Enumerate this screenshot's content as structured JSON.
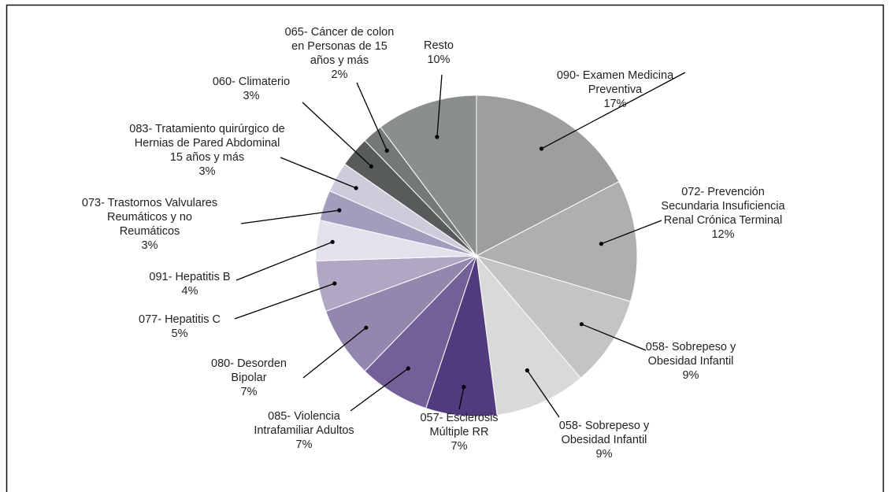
{
  "chart_data": {
    "type": "pie",
    "start": "top, clockwise",
    "slices": [
      {
        "lines": [
          "090- Examen Medicina",
          "Preventiva"
        ],
        "pct_label": "17%",
        "value": 17,
        "color": "#9d9e9f"
      },
      {
        "lines": [
          "072- Prevención",
          "Secundaria Insuficiencia",
          "Renal Crónica Terminal"
        ],
        "pct_label": "12%",
        "value": 12,
        "color": "#aeafb0"
      },
      {
        "lines": [
          "058- Sobrepeso y",
          "Obesidad Infantil"
        ],
        "pct_label": "9%",
        "value": 9,
        "color": "#c3c4c5"
      },
      {
        "lines": [
          "058- Sobrepeso y",
          "Obesidad Infantil"
        ],
        "pct_label": "9%",
        "value": 9,
        "color": "#d8d9d9"
      },
      {
        "lines": [
          "057- Esclerosis",
          "Múltiple RR"
        ],
        "pct_label": "7%",
        "value": 7,
        "color": "#523a7e"
      },
      {
        "lines": [
          "085- Violencia",
          "Intrafamiliar Adultos"
        ],
        "pct_label": "7%",
        "value": 7,
        "color": "#736099"
      },
      {
        "lines": [
          "080- Desorden",
          "Bipolar"
        ],
        "pct_label": "7%",
        "value": 7,
        "color": "#9387ae"
      },
      {
        "lines": [
          "077- Hepatitis C"
        ],
        "pct_label": "5%",
        "value": 5,
        "color": "#b0a7c4"
      },
      {
        "lines": [
          "091- Hepatitis B"
        ],
        "pct_label": "4%",
        "value": 4,
        "color": "#e4e1ec"
      },
      {
        "lines": [
          "073- Trastornos Valvulares",
          "Reumáticos y no",
          "Reumáticos"
        ],
        "pct_label": "3%",
        "value": 3,
        "color": "#a49cbd"
      },
      {
        "lines": [
          "083- Tratamiento quirúrgico de",
          "Hernias de Pared Abdominal",
          "15 años y más"
        ],
        "pct_label": "3%",
        "value": 3,
        "color": "#cfcbdb"
      },
      {
        "lines": [
          "060- Climaterio"
        ],
        "pct_label": "3%",
        "value": 3,
        "color": "#575b5b"
      },
      {
        "lines": [
          "065- Cáncer de colon",
          "en Personas de 15",
          "años y más"
        ],
        "pct_label": "2%",
        "value": 2,
        "color": "#747879"
      },
      {
        "lines": [
          "Resto"
        ],
        "pct_label": "10%",
        "value": 10,
        "color": "#8b8e8e"
      }
    ]
  }
}
